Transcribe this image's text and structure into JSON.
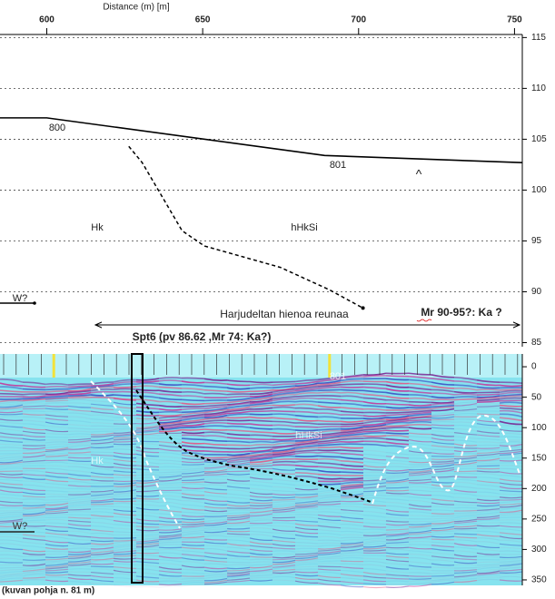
{
  "chart_data": [
    {
      "type": "line",
      "x_label": "Distance (m) [m]",
      "xlim": [
        585,
        752.5
      ],
      "xticks": [
        600,
        650,
        700,
        750
      ],
      "ylim": [
        84.6,
        115.3
      ],
      "yticks": [
        85,
        90,
        95,
        100,
        105,
        110,
        115
      ],
      "grid": true,
      "series": [
        {
          "color": "#000000",
          "style": "solid",
          "x": [
            585,
            600,
            689.1,
            752.5
          ],
          "values": [
            107.1,
            107.1,
            103.4,
            102.7
          ]
        },
        {
          "color": "#000000",
          "style": "dashed",
          "x": [
            626.3,
            630.6,
            643.4,
            650.6,
            674.9,
            690.6,
            701.4
          ],
          "values": [
            104.3,
            102.7,
            96.0,
            94.5,
            92.4,
            90.2,
            88.4
          ]
        }
      ],
      "annotations": [
        "800",
        "801",
        "^",
        "Hk",
        "hHkSi",
        "W?",
        "Harjudeltan hienoa reunaa",
        "Mr 90-95?: Ka ?",
        "Spt6 (pv 86.62 ,Mr 74: Ka?)"
      ]
    },
    {
      "type": "image",
      "ylim": [
        -21,
        359
      ],
      "yticks": [
        0,
        50,
        100,
        150,
        200,
        250,
        300,
        350
      ],
      "y_inverted": true,
      "annotations": [
        "801",
        "hHkSi",
        "Hk",
        "W?"
      ],
      "caption": "(kuvan pohja n. 81 m)"
    }
  ]
}
